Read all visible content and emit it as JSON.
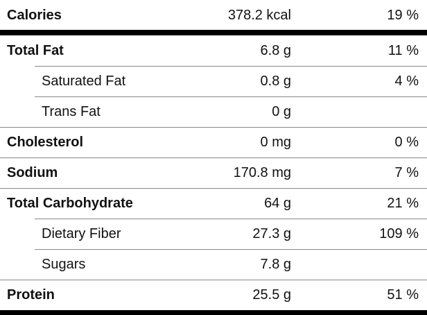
{
  "rows": [
    {
      "name": "Calories",
      "amount": "378.2 kcal",
      "daily_value": "19 %"
    },
    {
      "name": "Total Fat",
      "amount": "6.8 g",
      "daily_value": "11 %"
    },
    {
      "name": "Saturated Fat",
      "amount": "0.8 g",
      "daily_value": "4 %",
      "sub": true
    },
    {
      "name": "Trans Fat",
      "amount": "0 g",
      "sub": true
    },
    {
      "name": "Cholesterol",
      "amount": "0 mg",
      "daily_value": "0 %"
    },
    {
      "name": "Sodium",
      "amount": "170.8 mg",
      "daily_value": "7 %"
    },
    {
      "name": "Total Carbohydrate",
      "amount": "64 g",
      "daily_value": "21 %"
    },
    {
      "name": "Dietary Fiber",
      "amount": "27.3 g",
      "daily_value": "109 %",
      "sub": true
    },
    {
      "name": "Sugars",
      "amount": "7.8 g",
      "sub": true
    },
    {
      "name": "Protein",
      "amount": "25.5 g",
      "daily_value": "51 %"
    }
  ]
}
